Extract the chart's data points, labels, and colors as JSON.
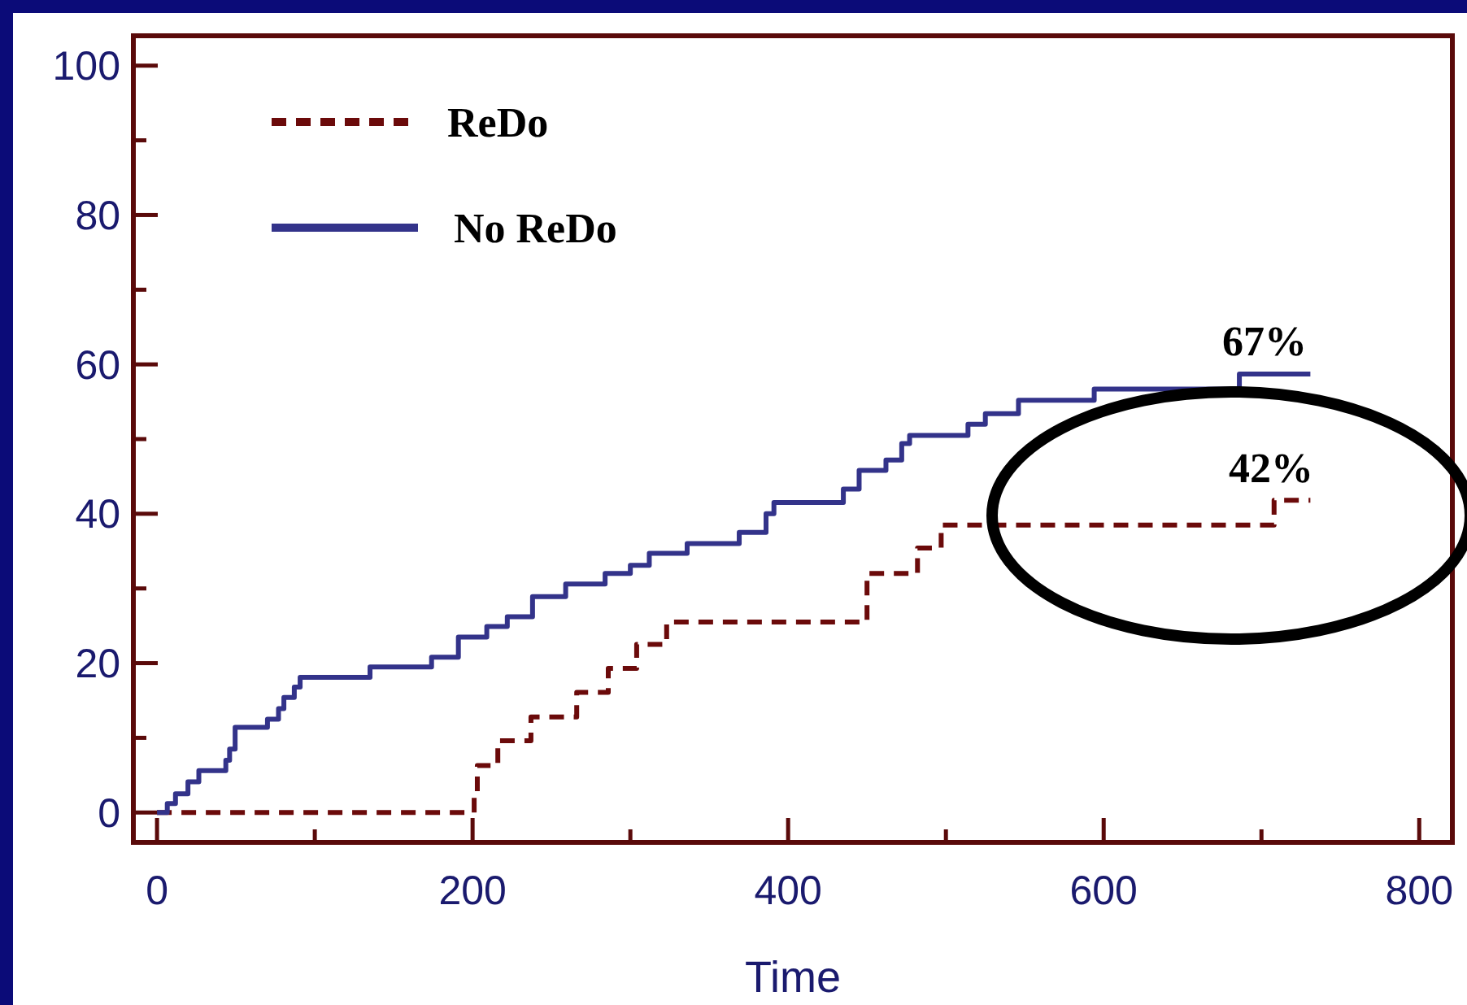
{
  "chart_data": {
    "type": "step",
    "xlabel": "Time",
    "xlim": [
      -15,
      821
    ],
    "ylim": [
      -4,
      104
    ],
    "xticks": [
      0,
      {
        "value": 100,
        "label": null
      },
      200,
      {
        "value": 300,
        "label": null
      },
      400,
      {
        "value": 500,
        "label": null
      },
      600,
      {
        "value": 700,
        "label": null
      },
      800
    ],
    "yticks": [
      0,
      {
        "value": 10,
        "label": null
      },
      20,
      {
        "value": 30,
        "label": null
      },
      40,
      {
        "value": 50,
        "label": null
      },
      60,
      {
        "value": 70,
        "label": null
      },
      80,
      {
        "value": 90,
        "label": null
      },
      100
    ],
    "legend": "top left",
    "grid": false,
    "series": [
      {
        "name": "ReDo",
        "color": "#6b0a0a",
        "line_style": "dashed",
        "x": [
          0,
          201,
          203,
          216,
          237,
          266,
          286,
          304,
          323,
          450,
          482,
          497,
          708,
          731
        ],
        "values": [
          0,
          2,
          6.3,
          9.6,
          12.8,
          16.1,
          19.3,
          22.5,
          25.5,
          32,
          35.4,
          38.5,
          41.8,
          41.8
        ]
      },
      {
        "name": "No ReDo",
        "color": "#33338a",
        "line_style": "solid",
        "x": [
          0,
          6.5,
          11.7,
          19.6,
          26.5,
          43.6,
          46,
          49.5,
          70,
          77,
          80.4,
          87,
          90.7,
          135,
          174,
          191,
          209,
          222,
          238,
          259,
          284,
          300,
          312,
          336,
          369,
          386,
          391,
          435,
          445,
          462,
          472,
          477,
          514,
          525,
          546,
          594,
          686,
          731
        ],
        "values": [
          0,
          1.2,
          2.5,
          4.1,
          5.6,
          7,
          8.5,
          11.4,
          12.5,
          13.9,
          15.4,
          16.8,
          18.1,
          19.5,
          20.8,
          23.5,
          24.9,
          26.2,
          28.9,
          30.6,
          32,
          33.1,
          34.7,
          36,
          37.5,
          40,
          41.5,
          43.3,
          45.8,
          47.2,
          49.4,
          50.5,
          52,
          53.4,
          55.2,
          56.7,
          58.7,
          58.7
        ]
      }
    ],
    "annotations": [
      {
        "text": "67%",
        "x": 702,
        "y": 59
      },
      {
        "text": "42%",
        "x": 706,
        "y": 42
      }
    ]
  }
}
